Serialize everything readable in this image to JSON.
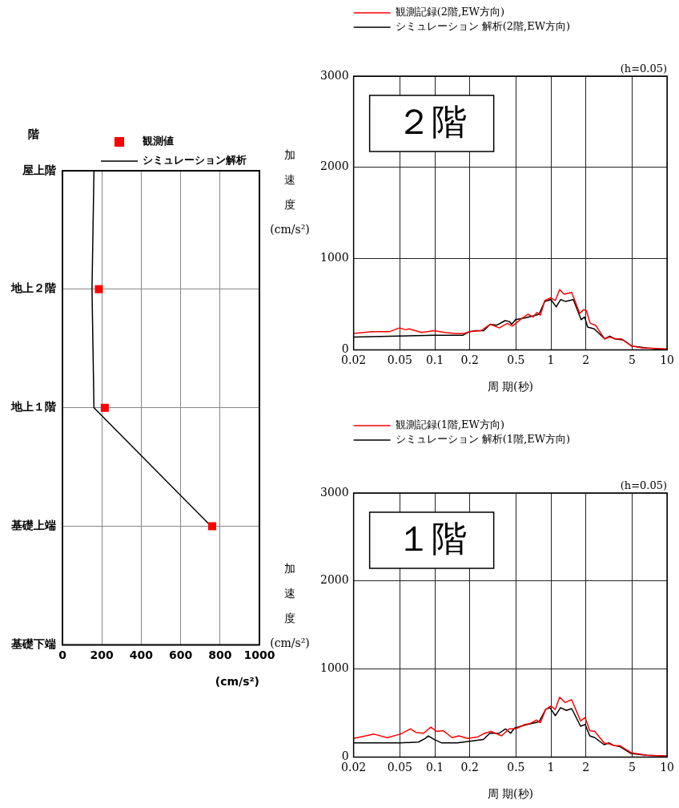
{
  "chart_data": [
    {
      "type": "line",
      "orientation": "horizontal",
      "ylabel": "階",
      "xlabel": "(cm/s²)",
      "categories": [
        "屋上階",
        "地上２階",
        "地上１階",
        "基礎上端",
        "基礎下端"
      ],
      "xlim": [
        0,
        1000
      ],
      "xticks": [
        0,
        200,
        400,
        600,
        800,
        1000
      ],
      "grid": true,
      "legend": "top",
      "series": [
        {
          "name": "観測値",
          "type": "scatter",
          "marker": "square",
          "color": "#ff0000",
          "values": [
            null,
            185,
            215,
            760,
            null
          ]
        },
        {
          "name": "シミュレーション解析",
          "type": "line",
          "marker": "none",
          "color": "#000000",
          "values": [
            160,
            150,
            160,
            755,
            null
          ]
        }
      ]
    },
    {
      "type": "line",
      "ylabel": "加速度(cm/s²)",
      "xlabel": "周 期(秒)",
      "log": "x",
      "xlim": [
        0.02,
        10
      ],
      "xticks": [
        0.02,
        0.05,
        0.1,
        0.2,
        0.5,
        1,
        2,
        5,
        10
      ],
      "ylim": [
        0,
        3000
      ],
      "yticks": [
        0,
        1000,
        2000,
        3000
      ],
      "grid": true,
      "legend": "top left",
      "marker": "none",
      "annotations": [
        "(h=0.05)",
        "２階"
      ],
      "series": [
        {
          "name": "観測記録(2階,EW方向)",
          "color": "#ff0000",
          "x": [
            0.02,
            0.029,
            0.041,
            0.0496,
            0.056,
            0.06,
            0.077,
            0.099,
            0.122,
            0.15,
            0.179,
            0.2,
            0.25,
            0.3,
            0.36,
            0.42,
            0.466,
            0.543,
            0.633,
            0.703,
            0.759,
            0.813,
            0.885,
            1.0,
            1.09,
            1.19,
            1.3,
            1.51,
            1.77,
            1.92,
            2.02,
            2.18,
            2.42,
            2.9,
            3.21,
            3.56,
            4.05,
            4.98,
            6.1,
            10
          ],
          "values": [
            180,
            200,
            200,
            240,
            220,
            230,
            190,
            210,
            190,
            180,
            180,
            200,
            210,
            280,
            240,
            290,
            260,
            330,
            390,
            360,
            410,
            380,
            540,
            570,
            540,
            660,
            610,
            630,
            400,
            440,
            430,
            290,
            270,
            120,
            140,
            120,
            120,
            40,
            20,
            10
          ]
        },
        {
          "name": "シミュレーション 解析(2階,EW方向)",
          "color": "#000000",
          "x": [
            0.02,
            0.048,
            0.099,
            0.175,
            0.2,
            0.226,
            0.264,
            0.3,
            0.342,
            0.403,
            0.438,
            0.46,
            0.496,
            0.603,
            0.74,
            0.79,
            0.885,
            1.0,
            1.11,
            1.21,
            1.34,
            1.56,
            1.82,
            1.95,
            2.07,
            2.36,
            2.9,
            3.21,
            3.56,
            4.16,
            4.98,
            6.78,
            10
          ],
          "values": [
            140,
            150,
            160,
            160,
            200,
            210,
            210,
            280,
            270,
            320,
            310,
            280,
            330,
            350,
            380,
            390,
            530,
            550,
            470,
            550,
            530,
            550,
            330,
            360,
            250,
            230,
            120,
            150,
            120,
            110,
            40,
            20,
            0
          ]
        }
      ]
    },
    {
      "type": "line",
      "ylabel": "加速度(cm/s²)",
      "xlabel": "周 期(秒)",
      "log": "x",
      "xlim": [
        0.02,
        10
      ],
      "xticks": [
        0.02,
        0.05,
        0.1,
        0.2,
        0.5,
        1,
        2,
        5,
        10
      ],
      "ylim": [
        0,
        3000
      ],
      "yticks": [
        0,
        1000,
        2000,
        3000
      ],
      "grid": true,
      "legend": "top left",
      "marker": "none",
      "annotations": [
        "(h=0.05)",
        "１階"
      ],
      "series": [
        {
          "name": "観測記録(1階,EW方向)",
          "color": "#ff0000",
          "x": [
            0.02,
            0.03,
            0.039,
            0.0505,
            0.062,
            0.0687,
            0.08,
            0.0926,
            0.104,
            0.118,
            0.141,
            0.161,
            0.192,
            0.236,
            0.269,
            0.306,
            0.375,
            0.438,
            0.498,
            0.597,
            0.661,
            0.752,
            0.813,
            0.9,
            1.0,
            1.09,
            1.19,
            1.32,
            1.51,
            1.8,
            1.97,
            2.16,
            2.39,
            2.87,
            3.17,
            3.5,
            3.9,
            4.91,
            6.7,
            10
          ],
          "values": [
            210,
            260,
            220,
            260,
            320,
            280,
            270,
            340,
            290,
            300,
            220,
            240,
            210,
            230,
            270,
            290,
            240,
            320,
            320,
            370,
            380,
            420,
            390,
            540,
            580,
            540,
            680,
            620,
            650,
            410,
            450,
            300,
            290,
            160,
            150,
            130,
            130,
            50,
            20,
            10
          ]
        },
        {
          "name": "シミュレーション 解析(1階,EW方向)",
          "color": "#000000",
          "x": [
            0.02,
            0.0505,
            0.0723,
            0.0824,
            0.088,
            0.0985,
            0.115,
            0.156,
            0.2,
            0.262,
            0.298,
            0.357,
            0.406,
            0.45,
            0.486,
            0.628,
            0.791,
            0.9,
            0.98,
            1.09,
            1.21,
            1.36,
            1.51,
            1.8,
            1.97,
            2.16,
            2.39,
            2.87,
            3.17,
            3.5,
            3.9,
            4.91,
            6.7,
            10
          ],
          "values": [
            160,
            160,
            170,
            210,
            240,
            200,
            160,
            160,
            180,
            200,
            270,
            270,
            320,
            270,
            330,
            370,
            400,
            540,
            560,
            470,
            560,
            530,
            550,
            350,
            370,
            240,
            220,
            140,
            160,
            130,
            120,
            40,
            20,
            10
          ]
        }
      ]
    }
  ]
}
